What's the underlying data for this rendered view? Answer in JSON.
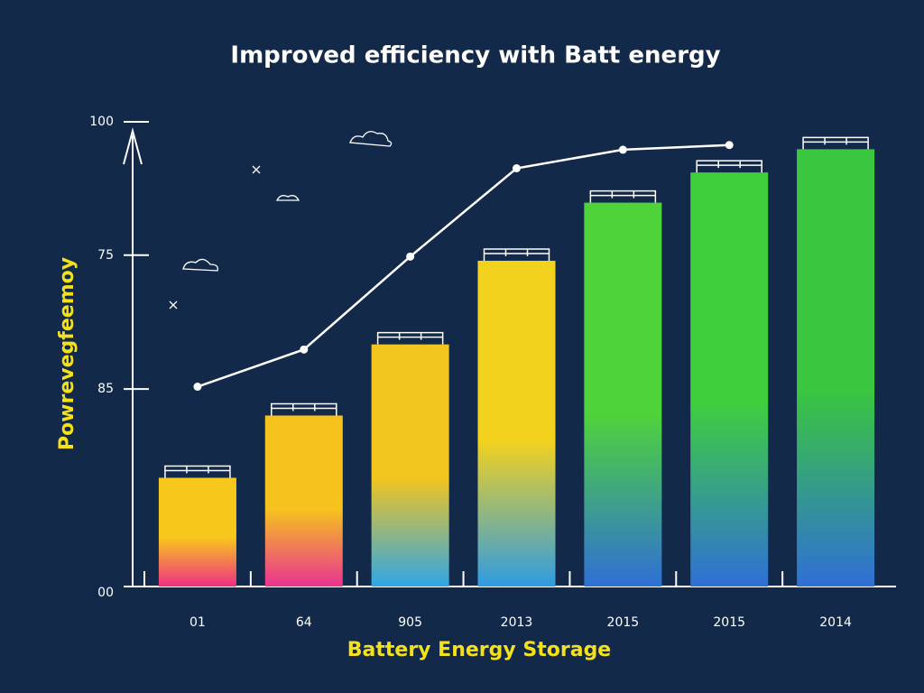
{
  "chart_data": {
    "type": "bar",
    "title": "Improved efficiency with Batt energy",
    "x_label": "Battery Energy Storage",
    "y_label": "Powrevegfeemoy",
    "categories": [
      "01",
      "64",
      "905",
      "2013",
      "2015",
      "2015",
      "2014"
    ],
    "series": [
      {
        "type": "bar",
        "values": [
          23.4,
          36.8,
          52.1,
          70.1,
          82.6,
          89.1,
          94.1
        ],
        "colors": [
          "#f7c71c",
          "#f5c21e",
          "#f2c51f",
          "#f3d21e",
          "#4fd33a",
          "#3fcf3d",
          "#3ac63e"
        ],
        "bottom_colors": [
          "#ef2f86",
          "#e93392",
          "#2fa6e6",
          "#2f9be2",
          "#2f6fd6",
          "#2f6fd6",
          "#2f6fd6"
        ]
      },
      {
        "type": "line",
        "color": "#ffffff",
        "values": [
          43,
          51,
          71,
          90,
          94,
          95,
          null
        ]
      }
    ],
    "ylim": [
      0,
      100
    ],
    "yticks": [
      {
        "value": 0,
        "label": "00"
      },
      {
        "value": 42.5,
        "label": "85"
      },
      {
        "value": 71.3,
        "label": "75"
      },
      100
    ]
  }
}
